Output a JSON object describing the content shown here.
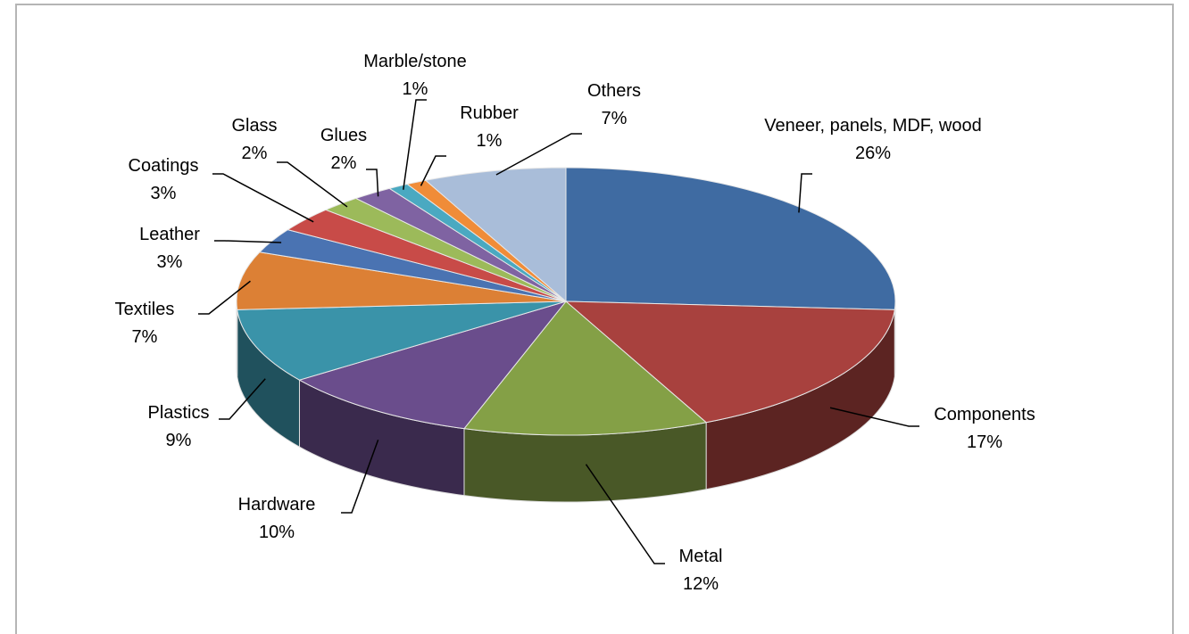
{
  "chart_data": {
    "type": "pie3d",
    "categories": [
      "Veneer, panels,  MDF, wood",
      "Components",
      "Metal",
      "Hardware",
      "Plastics",
      "Textiles",
      "Leather",
      "Coatings",
      "Glass",
      "Glues",
      "Marble/stone",
      "Rubber",
      "Others"
    ],
    "values": [
      26,
      17,
      12,
      10,
      9,
      7,
      3,
      3,
      2,
      2,
      1,
      1,
      7
    ],
    "value_labels": [
      "26%",
      "17%",
      "12%",
      "10%",
      "9%",
      "7%",
      "3%",
      "3%",
      "2%",
      "2%",
      "1%",
      "1%",
      "7%"
    ],
    "colors": [
      "#3f6ba2",
      "#a8413e",
      "#84a046",
      "#6a4d8c",
      "#3a93a9",
      "#dc8035",
      "#4a73b2",
      "#c84b48",
      "#9cba5a",
      "#7f63a2",
      "#4aa9c1",
      "#f08c38",
      "#a9bdd9"
    ]
  }
}
